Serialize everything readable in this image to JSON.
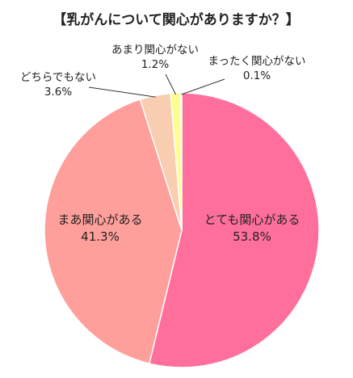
{
  "chart_data": {
    "type": "pie",
    "title": "【乳がんについて関心がありますか？】",
    "slices": [
      {
        "label": "とても関心がある",
        "value": 53.8,
        "value_label": "53.8%",
        "color": "#ff6f9c"
      },
      {
        "label": "まあ関心がある",
        "value": 41.3,
        "value_label": "41.3%",
        "color": "#ff9f9b"
      },
      {
        "label": "どちらでもない",
        "value": 3.6,
        "value_label": "3.6%",
        "color": "#f8cdb0"
      },
      {
        "label": "あまり関心がない",
        "value": 1.2,
        "value_label": "1.2%",
        "color": "#fdfd90"
      },
      {
        "label": "まったく関心がない",
        "value": 0.1,
        "value_label": "0.1%",
        "color": "#c8c8c8"
      }
    ],
    "start": "12 o'clock",
    "direction": "clockwise",
    "legend": "none"
  }
}
